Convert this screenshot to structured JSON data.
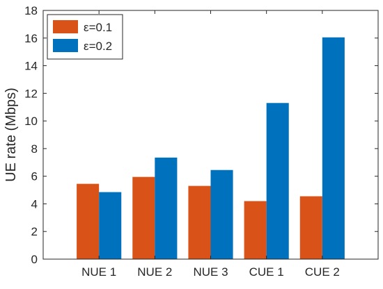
{
  "chart_data": {
    "type": "bar",
    "title": "",
    "xlabel": "",
    "ylabel": "UE rate (Mbps)",
    "categories": [
      "NUE 1",
      "NUE 2",
      "NUE 3",
      "CUE 1",
      "CUE 2"
    ],
    "series": [
      {
        "name": "ε=0.1",
        "color": "#D95319",
        "values": [
          5.45,
          5.95,
          5.3,
          4.2,
          4.55
        ]
      },
      {
        "name": "ε=0.2",
        "color": "#0072BD",
        "values": [
          4.85,
          7.35,
          6.45,
          11.3,
          16.05
        ]
      }
    ],
    "ylim": [
      0,
      18
    ],
    "yticks": [
      0,
      2,
      4,
      6,
      8,
      10,
      12,
      14,
      16,
      18
    ],
    "xlim": [
      0,
      6
    ],
    "grid": false,
    "legend_position": "top-left"
  }
}
